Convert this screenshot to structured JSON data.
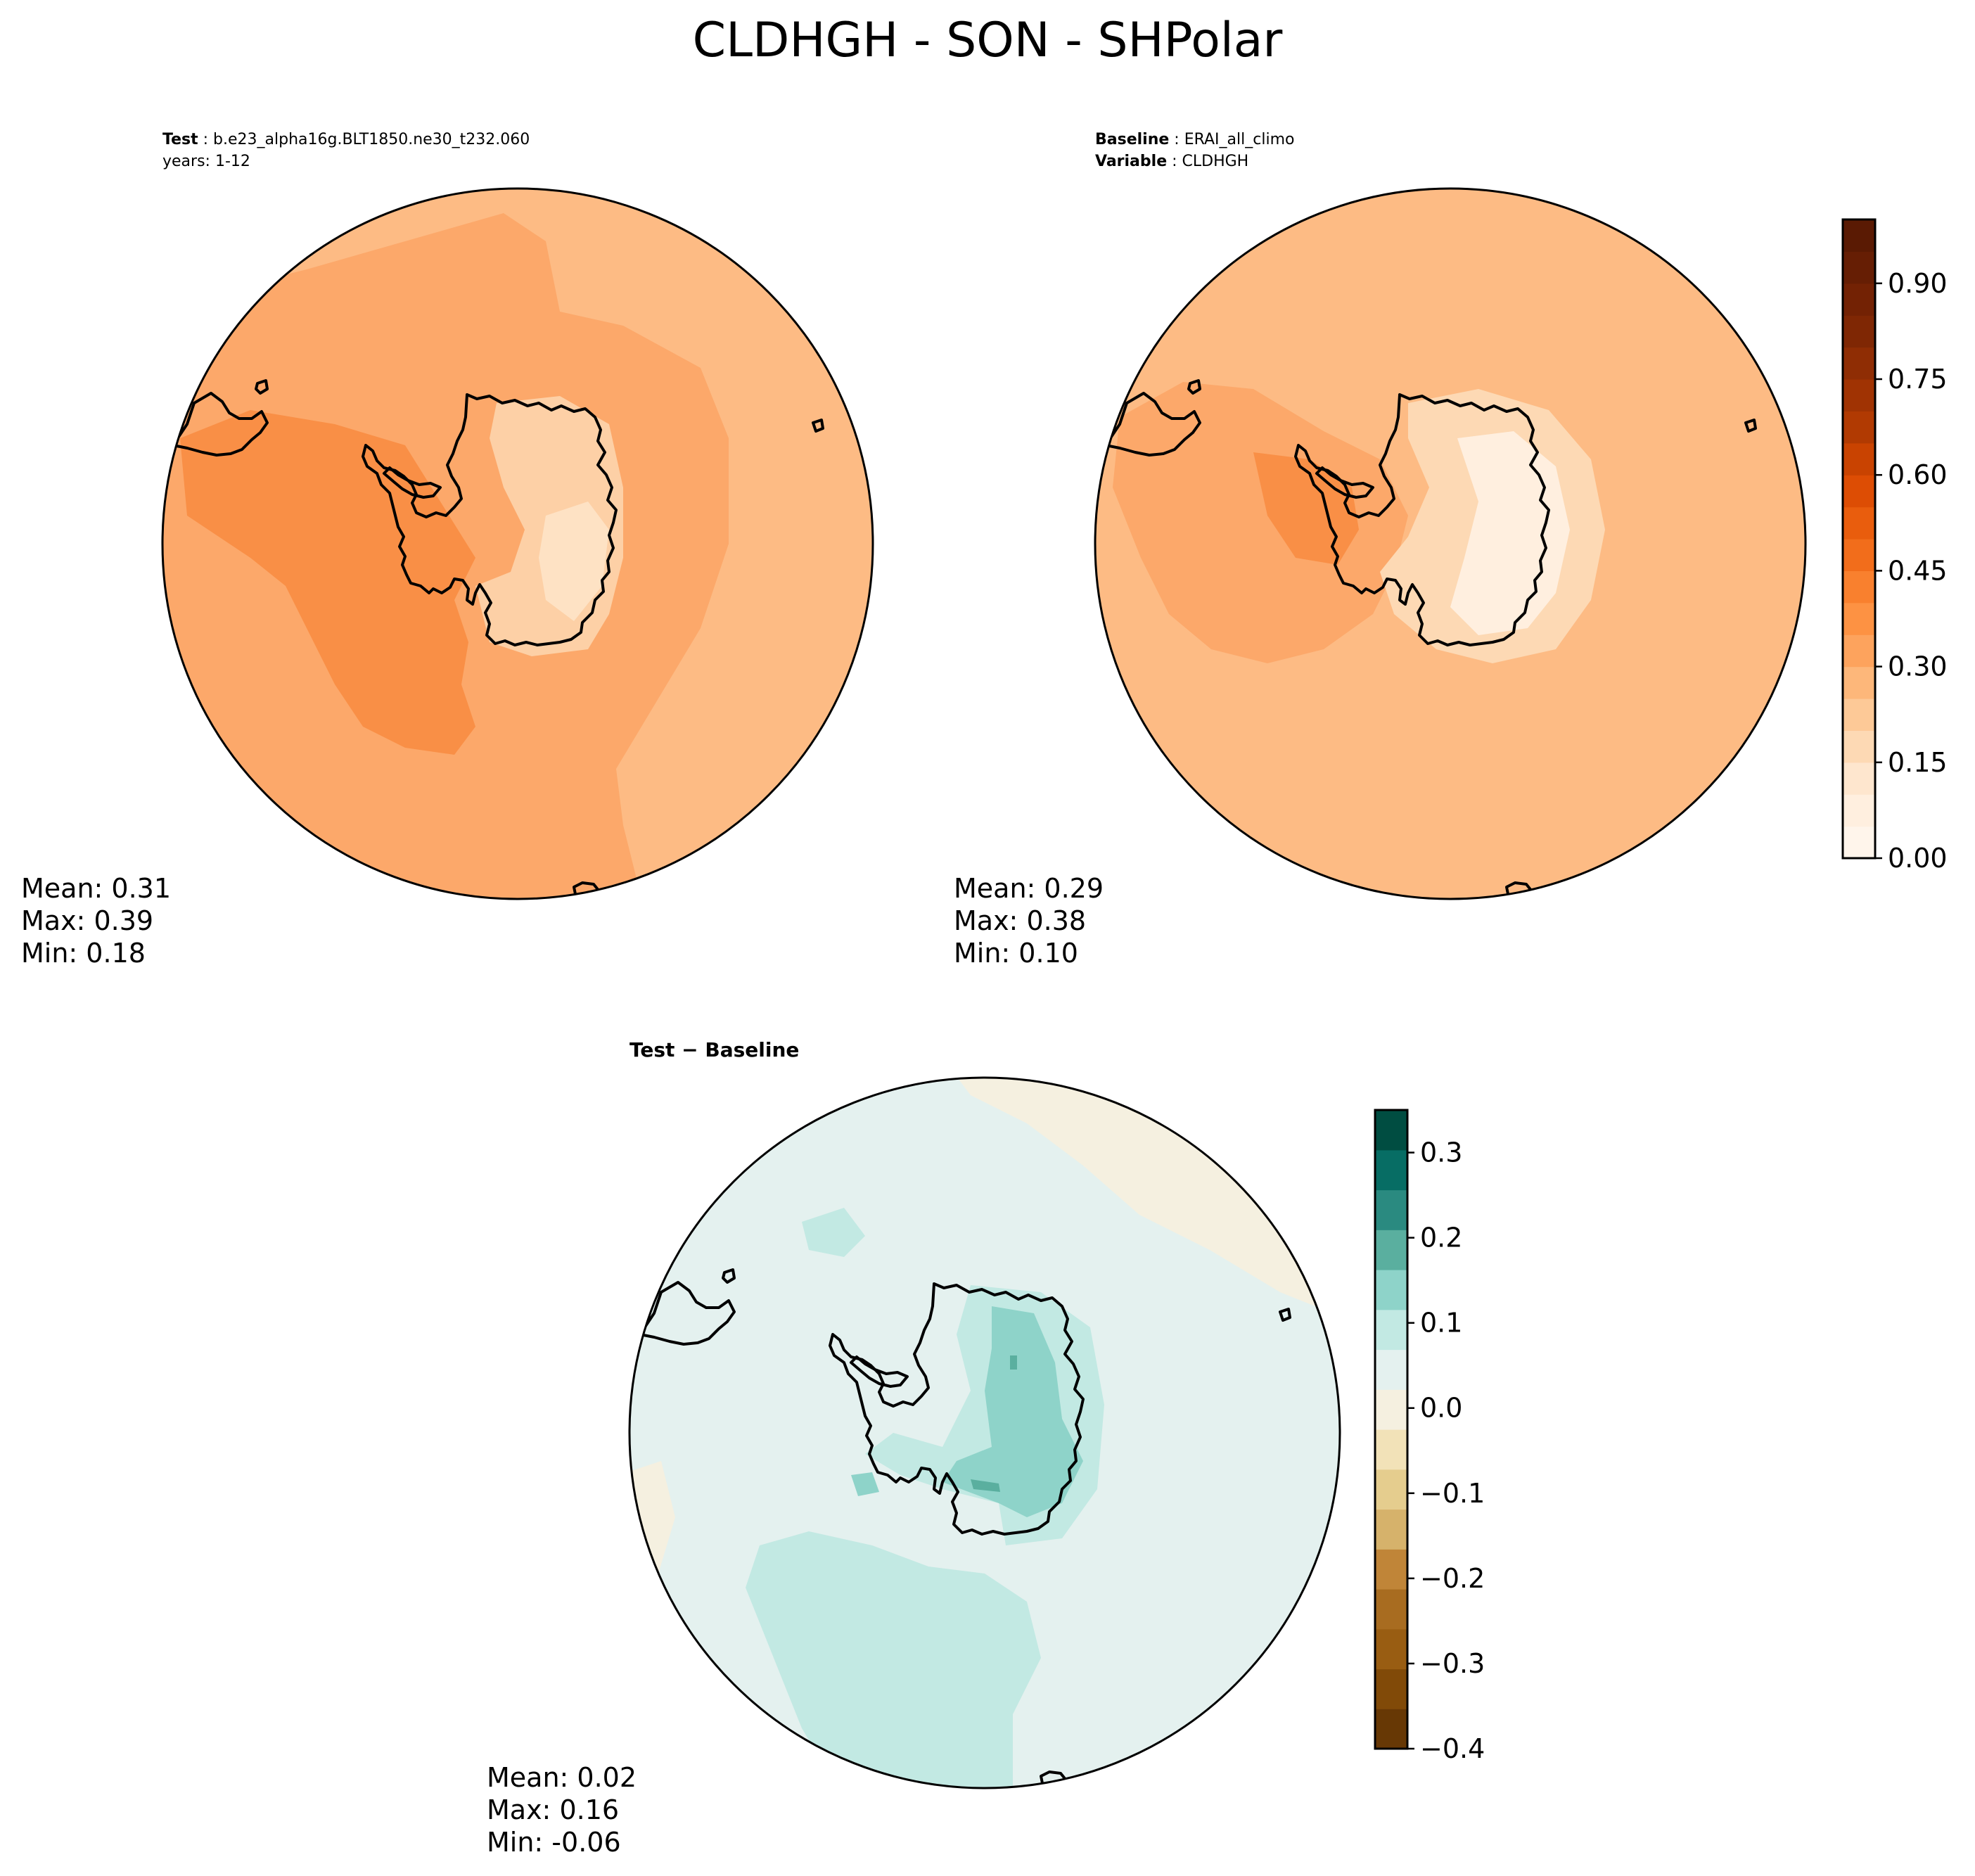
{
  "figure": {
    "title": "CLDHGH - SON - SHPolar"
  },
  "test_panel": {
    "label_bold": "Test",
    "label_value": "b.e23_alpha16g.BLT1850.ne30_t232.060",
    "years": "years: 1-12",
    "stats": {
      "mean": "Mean:  0.31",
      "max": "Max:  0.39",
      "min": "Min:  0.18"
    }
  },
  "baseline_panel": {
    "label_bold": "Baseline",
    "label_value": "ERAI_all_climo",
    "variable_bold": "Variable",
    "variable_value": "CLDHGH",
    "stats": {
      "mean": "Mean:  0.29",
      "max": "Max:  0.38",
      "min": "Min:  0.10"
    }
  },
  "diff_panel": {
    "label": "Test − Baseline",
    "stats": {
      "mean": "Mean:  0.02",
      "max": "Max:  0.16",
      "min": "Min: -0.06"
    }
  },
  "colorbars": {
    "main": {
      "cmap": "Oranges",
      "range": [
        0.0,
        1.0
      ],
      "n_levels": 20,
      "ticks": [
        0.0,
        0.15,
        0.3,
        0.45,
        0.6,
        0.75,
        0.9
      ],
      "tick_labels": [
        "0.00",
        "0.15",
        "0.30",
        "0.45",
        "0.60",
        "0.75",
        "0.90"
      ],
      "colors": [
        "#fff5eb",
        "#ffefdf",
        "#fee6ce",
        "#fdd9b4",
        "#fdc997",
        "#fdb77a",
        "#fda35d",
        "#fd9243",
        "#f9802e",
        "#f26d1b",
        "#e95d0d",
        "#dd4d04",
        "#c94301",
        "#b13a02",
        "#a03303",
        "#8f2d04",
        "#7f2704",
        "#732204",
        "#661e04",
        "#5a1a03"
      ]
    },
    "diff": {
      "cmap": "BrBG",
      "range": [
        -0.4,
        0.35
      ],
      "step": 0.05,
      "ticks": [
        -0.4,
        -0.3,
        -0.2,
        -0.1,
        0.0,
        0.1,
        0.2,
        0.3
      ],
      "tick_labels": [
        "−0.4",
        "−0.3",
        "−0.2",
        "−0.1",
        "0.0",
        "0.1",
        "0.2",
        "0.3"
      ],
      "colors": [
        "#673805",
        "#814a08",
        "#995d12",
        "#a86c20",
        "#c08538",
        "#d6b26b",
        "#e5cd8e",
        "#f2e2b8",
        "#f5f0e0",
        "#e4f1ef",
        "#c2e9e3",
        "#8ed3c9",
        "#5aaf9f",
        "#2a8a80",
        "#076d64",
        "#004d41"
      ]
    }
  },
  "map_colors": {
    "test": {
      "background": "#fdbb84",
      "darker": "#fca86a",
      "darkest": "#f98f46",
      "lighter": "#fdd0a6",
      "lightest": "#fee2c4"
    },
    "baseline": {
      "background": "#fdbb84",
      "darker": "#fca86a",
      "darkest": "#f98f46",
      "lighter": "#fdd9b4",
      "lightest": "#ffefdf"
    },
    "diff": {
      "background": "#e4f1ef",
      "pos1": "#c2e9e3",
      "pos2": "#8ed3c9",
      "pos3": "#5aaf9f",
      "neg1": "#f5f0e0"
    }
  }
}
